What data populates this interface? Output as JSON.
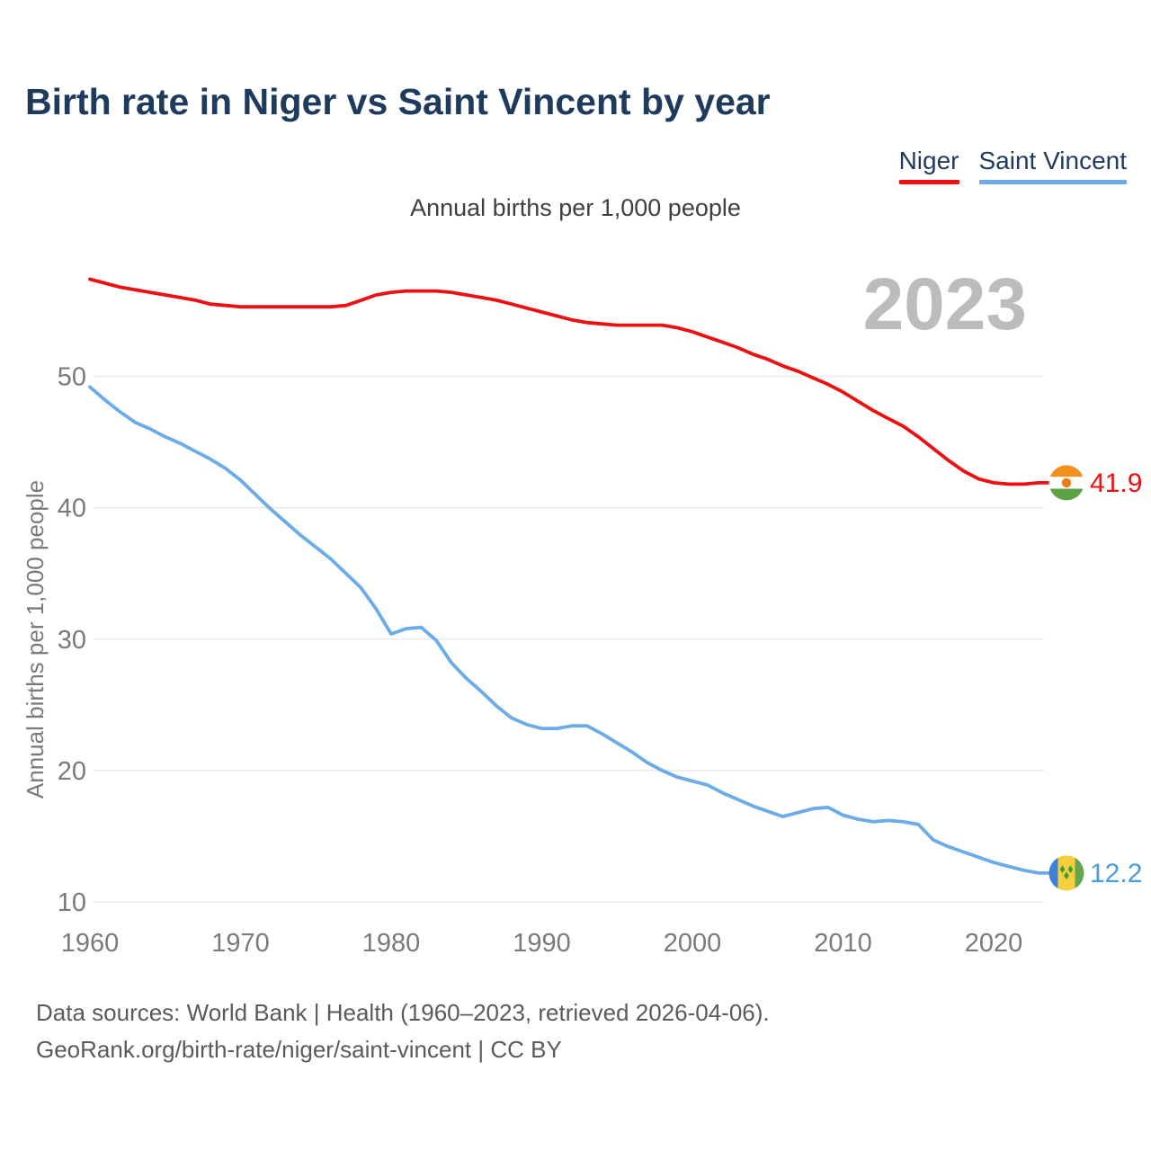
{
  "page": {
    "title": "Birth rate in Niger vs Saint Vincent by year",
    "watermark": "2023",
    "footer_line1": "Data sources: World Bank | Health (1960–2023, retrieved 2026-04-06).",
    "footer_line2": "GeoRank.org/birth-rate/niger/saint-vincent | CC BY"
  },
  "legend": {
    "items": [
      {
        "label": "Niger",
        "color": "#ee1010"
      },
      {
        "label": "Saint Vincent",
        "color": "#6aabe8"
      }
    ]
  },
  "chart_data": {
    "type": "line",
    "title": "Birth rate in Niger vs Saint Vincent by year",
    "subtitle": "Annual births per 1,000 people",
    "ylabel": "Annual births per 1,000 people",
    "xlabel": "",
    "grid": "horizontal",
    "legend_position": "top-right",
    "ylim": [
      8,
      59
    ],
    "y_ticks": [
      10,
      20,
      30,
      40,
      50
    ],
    "x_ticks": [
      1960,
      1970,
      1980,
      1990,
      2000,
      2010,
      2020
    ],
    "x": [
      1960,
      1961,
      1962,
      1963,
      1964,
      1965,
      1966,
      1967,
      1968,
      1969,
      1970,
      1971,
      1972,
      1973,
      1974,
      1975,
      1976,
      1977,
      1978,
      1979,
      1980,
      1981,
      1982,
      1983,
      1984,
      1985,
      1986,
      1987,
      1988,
      1989,
      1990,
      1991,
      1992,
      1993,
      1994,
      1995,
      1996,
      1997,
      1998,
      1999,
      2000,
      2001,
      2002,
      2003,
      2004,
      2005,
      2006,
      2007,
      2008,
      2009,
      2010,
      2011,
      2012,
      2013,
      2014,
      2015,
      2016,
      2017,
      2018,
      2019,
      2020,
      2021,
      2022,
      2023
    ],
    "series": [
      {
        "name": "Niger",
        "color": "#ee1010",
        "label_color": "#ee1010",
        "end_label": "41.9",
        "values": [
          57.4,
          57.1,
          56.8,
          56.6,
          56.4,
          56.2,
          56.0,
          55.8,
          55.5,
          55.4,
          55.3,
          55.3,
          55.3,
          55.3,
          55.3,
          55.3,
          55.3,
          55.4,
          55.8,
          56.2,
          56.4,
          56.5,
          56.5,
          56.5,
          56.4,
          56.2,
          56.0,
          55.8,
          55.5,
          55.2,
          54.9,
          54.6,
          54.3,
          54.1,
          54.0,
          53.9,
          53.9,
          53.9,
          53.9,
          53.7,
          53.4,
          53.0,
          52.6,
          52.2,
          51.7,
          51.3,
          50.8,
          50.4,
          49.9,
          49.4,
          48.8,
          48.1,
          47.4,
          46.8,
          46.2,
          45.4,
          44.5,
          43.6,
          42.8,
          42.2,
          41.9,
          41.8,
          41.8,
          41.9
        ]
      },
      {
        "name": "Saint Vincent",
        "color": "#6aabe8",
        "label_color": "#4b9be0",
        "end_label": "12.2",
        "values": [
          49.2,
          48.2,
          47.3,
          46.5,
          46.0,
          45.4,
          44.9,
          44.3,
          43.7,
          43.0,
          42.1,
          41.0,
          39.9,
          38.9,
          37.9,
          37.0,
          36.1,
          35.0,
          33.9,
          32.3,
          30.4,
          30.8,
          30.9,
          29.9,
          28.2,
          27.0,
          26.0,
          24.9,
          24.0,
          23.5,
          23.2,
          23.2,
          23.4,
          23.4,
          22.8,
          22.1,
          21.4,
          20.6,
          20.0,
          19.5,
          19.2,
          18.9,
          18.3,
          17.8,
          17.3,
          16.9,
          16.5,
          16.8,
          17.1,
          17.2,
          16.6,
          16.3,
          16.1,
          16.2,
          16.1,
          15.9,
          14.7,
          14.2,
          13.8,
          13.4,
          13.0,
          12.7,
          12.4,
          12.2
        ]
      }
    ]
  }
}
